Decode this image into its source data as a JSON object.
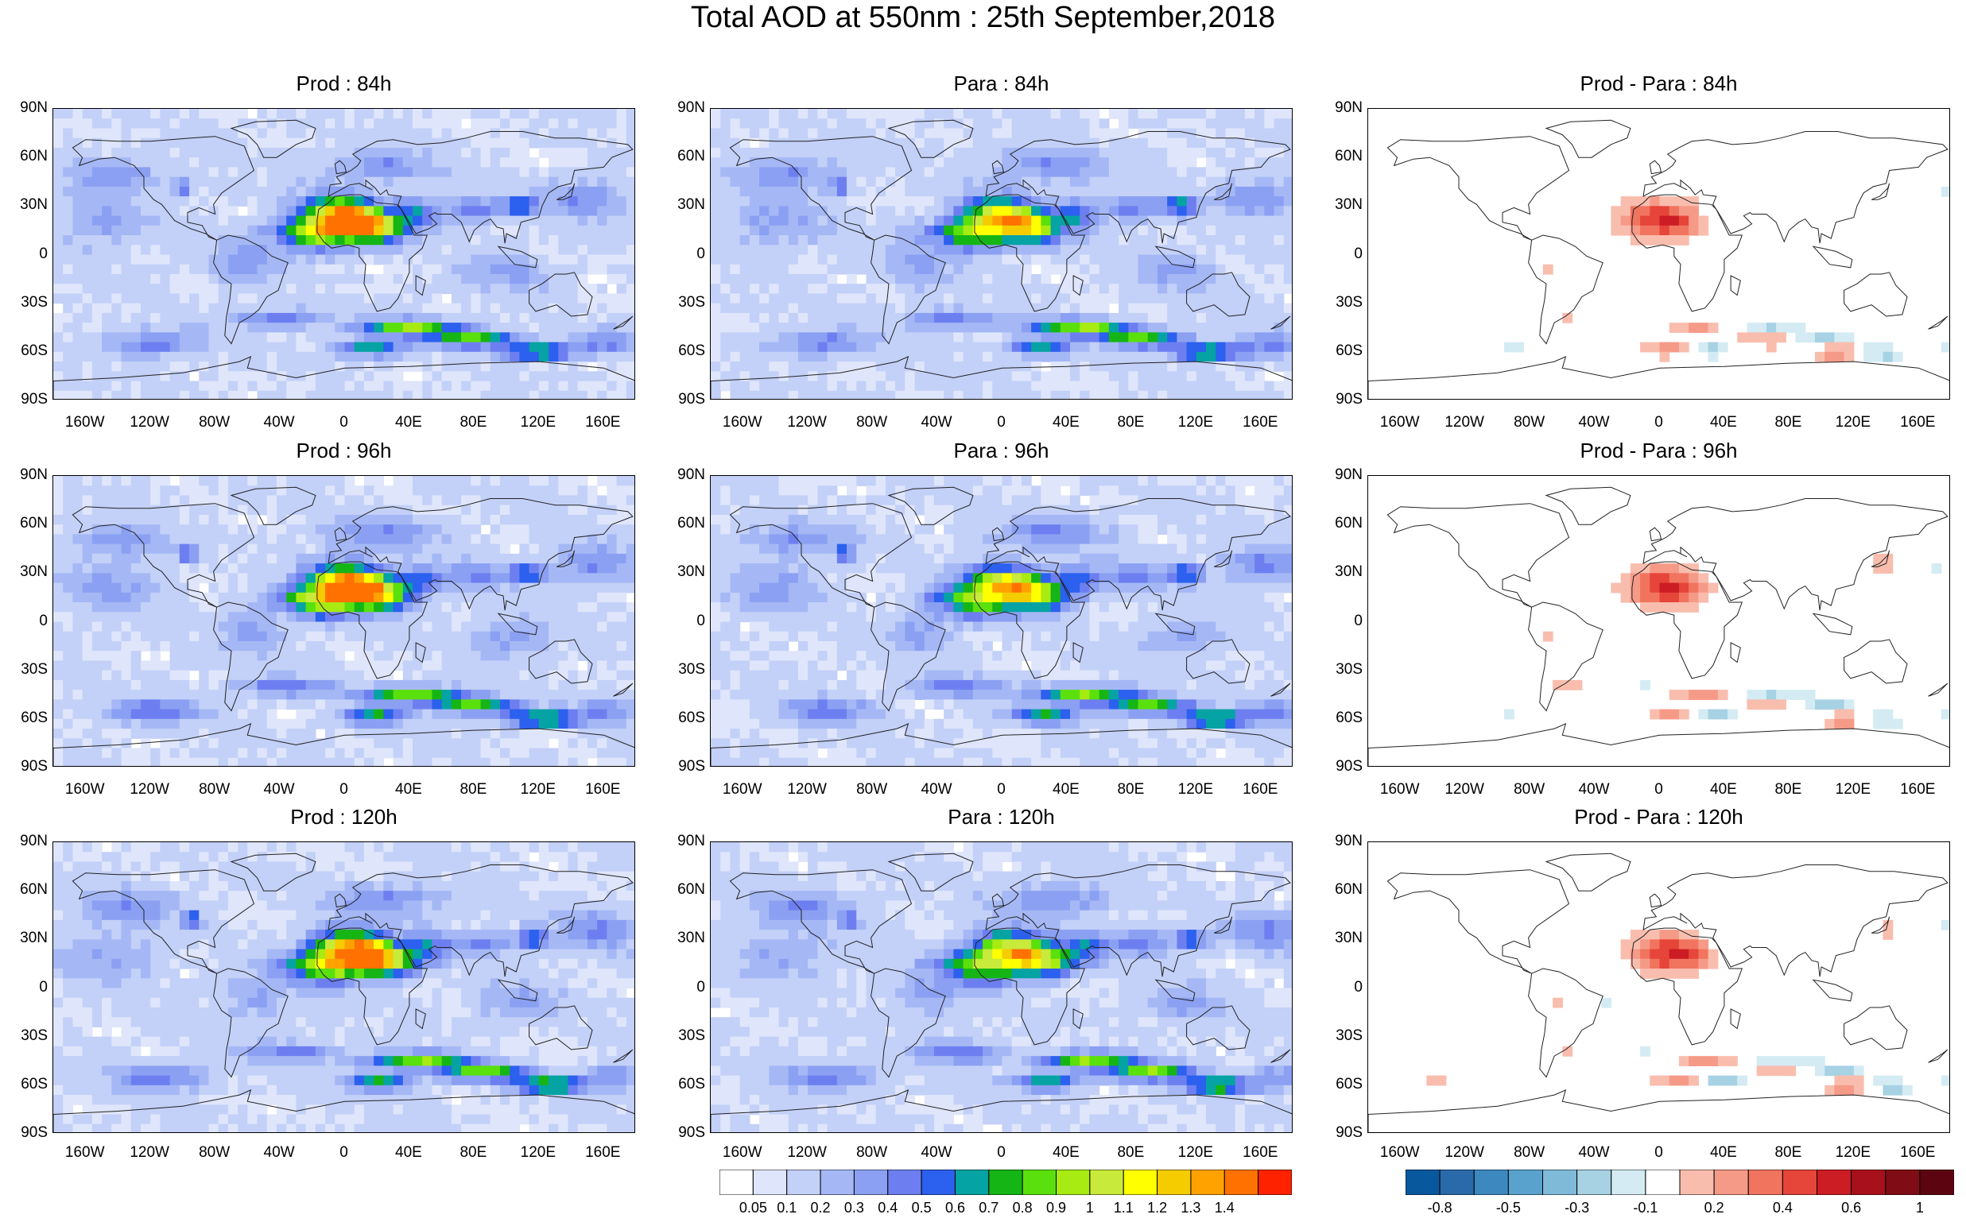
{
  "title": "Total AOD at 550nm : 25th September,2018",
  "rows": [
    {
      "panels": [
        {
          "title": "Prod : 84h",
          "kind": "prod"
        },
        {
          "title": "Para : 84h",
          "kind": "para"
        },
        {
          "title": "Prod - Para : 84h",
          "kind": "diff"
        }
      ]
    },
    {
      "panels": [
        {
          "title": "Prod : 96h",
          "kind": "prod"
        },
        {
          "title": "Para : 96h",
          "kind": "para"
        },
        {
          "title": "Prod - Para : 96h",
          "kind": "diff"
        }
      ]
    },
    {
      "panels": [
        {
          "title": "Prod : 120h",
          "kind": "prod"
        },
        {
          "title": "Para : 120h",
          "kind": "para"
        },
        {
          "title": "Prod - Para : 120h",
          "kind": "diff"
        }
      ]
    }
  ],
  "lat_labels": [
    "90N",
    "60N",
    "30N",
    "0",
    "30S",
    "60S",
    "90S"
  ],
  "lon_labels": [
    "160W",
    "120W",
    "80W",
    "40W",
    "0",
    "40E",
    "80E",
    "120E",
    "160E"
  ],
  "aod_colorbar": {
    "labels": [
      "0.05",
      "0.1",
      "0.2",
      "0.3",
      "0.4",
      "0.5",
      "0.6",
      "0.7",
      "0.8",
      "0.9",
      "1",
      "1.1",
      "1.2",
      "1.3",
      "1.4"
    ],
    "colors": [
      "#ffffff",
      "#dfe6fb",
      "#c3d0f8",
      "#a5b8f5",
      "#8ba0f2",
      "#6d7ff0",
      "#2c60ee",
      "#05a3a3",
      "#16b516",
      "#5ae00c",
      "#a7eb12",
      "#c8ea3a",
      "#ffff00",
      "#f5cc00",
      "#ffa200",
      "#ff7100",
      "#ff2200"
    ]
  },
  "diff_colorbar": {
    "labels": [
      "-0.8",
      "-0.5",
      "-0.3",
      "-0.1",
      "0.2",
      "0.4",
      "0.6",
      "1"
    ],
    "colors": [
      "#08589e",
      "#2a6aaa",
      "#3c88bf",
      "#5aa2ce",
      "#7fbad9",
      "#a7d2e4",
      "#d4ebf3",
      "#ffffff",
      "#f9bdae",
      "#f69a88",
      "#f1745f",
      "#e6453a",
      "#cc1c24",
      "#a8101c",
      "#800c15",
      "#5c0410"
    ]
  }
}
